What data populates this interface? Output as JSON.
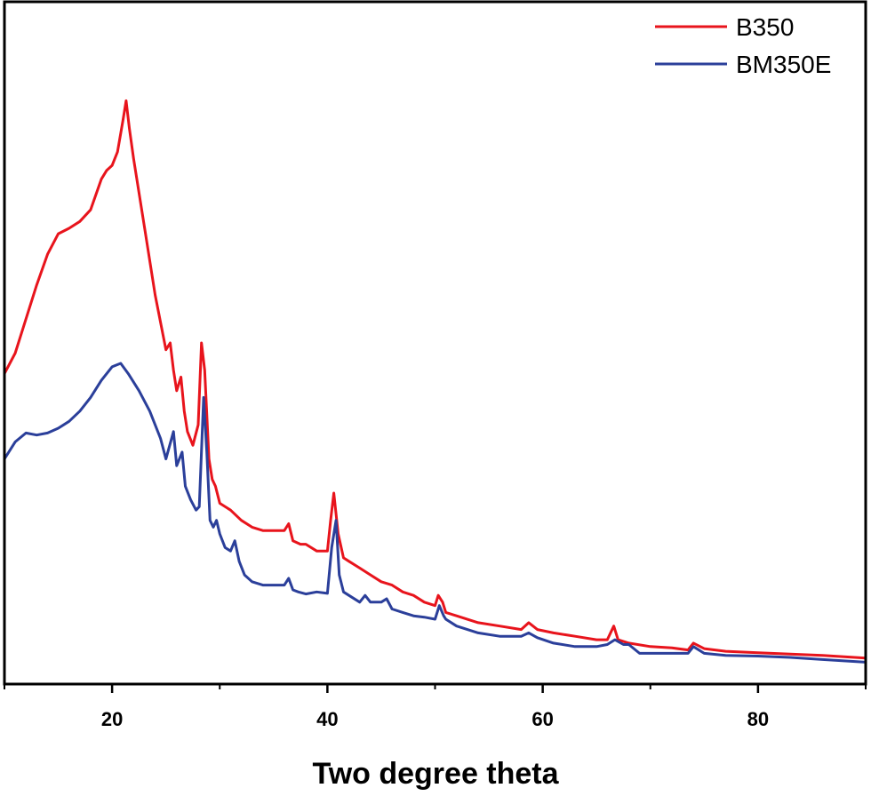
{
  "chart_data": {
    "type": "line",
    "title": "",
    "xlabel": "Two degree theta",
    "ylabel": "",
    "xlim": [
      10,
      90
    ],
    "ylim": [
      0,
      100
    ],
    "xticks": [
      20,
      40,
      60,
      80
    ],
    "xtick_labels": [
      "20",
      "40",
      "60",
      "80"
    ],
    "x_minor_ticks": [
      10,
      30,
      50,
      70,
      90
    ],
    "y_axis_shown": false,
    "grid": false,
    "legend_position": "top-right",
    "series": [
      {
        "name": "B350",
        "color": "#e8141c",
        "x": [
          10,
          11,
          12,
          13,
          14,
          15,
          16,
          17,
          18,
          19,
          19.5,
          20,
          20.5,
          21,
          21.3,
          21.6,
          22,
          23,
          24,
          25,
          25.4,
          25.7,
          26,
          26.4,
          26.7,
          27,
          27.5,
          28,
          28.3,
          28.6,
          29,
          29.3,
          29.6,
          30,
          31,
          32,
          33,
          34,
          35,
          36,
          36.4,
          36.8,
          37.5,
          38,
          39,
          40,
          40.3,
          40.6,
          41,
          41.5,
          42,
          43,
          44,
          45,
          46,
          47,
          48,
          49,
          50,
          50.3,
          50.7,
          51,
          52,
          54,
          56,
          58,
          58.7,
          59.5,
          61,
          63,
          65,
          66,
          66.6,
          67,
          68,
          70,
          72,
          73.5,
          74,
          75,
          77,
          80,
          83,
          86,
          90
        ],
        "y": [
          45.5,
          48.5,
          53.5,
          58.5,
          63,
          66,
          66.8,
          67.8,
          69.5,
          74,
          75.3,
          76,
          78,
          82.5,
          85.5,
          81.5,
          77,
          67,
          57,
          49,
          50,
          46,
          43,
          45,
          40,
          37,
          35,
          38,
          50,
          46,
          33,
          30,
          29,
          26.5,
          25.5,
          24,
          23,
          22.5,
          22.5,
          22.5,
          23.5,
          21,
          20.5,
          20.5,
          19.5,
          19.5,
          24,
          28,
          22,
          18.5,
          18,
          17,
          16,
          15,
          14.5,
          13.5,
          13,
          12,
          11.5,
          13,
          12,
          10.5,
          10,
          9,
          8.5,
          8,
          9,
          8,
          7.5,
          7,
          6.5,
          6.5,
          8.5,
          6.5,
          6,
          5.5,
          5.3,
          5,
          6,
          5.2,
          4.8,
          4.6,
          4.4,
          4.2,
          3.8
        ]
      },
      {
        "name": "BM350E",
        "color": "#2b3f9a",
        "x": [
          10,
          11,
          12,
          13,
          14,
          15,
          16,
          17,
          18,
          19,
          20,
          20.8,
          21.5,
          22.5,
          23.5,
          24.5,
          25,
          25.7,
          26,
          26.5,
          26.8,
          27.3,
          27.8,
          28.1,
          28.5,
          28.8,
          29.1,
          29.4,
          29.7,
          30,
          30.5,
          31,
          31.4,
          31.8,
          32.3,
          33,
          34,
          35,
          36,
          36.4,
          36.8,
          37.3,
          38,
          39,
          40,
          40.4,
          40.8,
          41.1,
          41.5,
          42,
          43,
          43.5,
          44,
          45,
          45.5,
          46,
          47,
          48,
          49,
          50,
          50.4,
          50.8,
          51,
          52,
          54,
          56,
          58,
          58.7,
          59.5,
          61,
          63,
          65,
          66,
          66.7,
          67.5,
          68,
          69,
          70,
          72,
          73.5,
          74,
          75,
          77,
          80,
          83,
          86,
          90
        ],
        "y": [
          33,
          35.5,
          36.8,
          36.5,
          36.8,
          37.5,
          38.5,
          40,
          42,
          44.5,
          46.5,
          47,
          45.5,
          43,
          40,
          36,
          33,
          37,
          32,
          34,
          29,
          27,
          25.5,
          26,
          42,
          34,
          24,
          23,
          24,
          22,
          20,
          19.5,
          21,
          18,
          16,
          15,
          14.5,
          14.5,
          14.5,
          15.5,
          13.8,
          13.5,
          13.2,
          13.5,
          13.3,
          20,
          24,
          16,
          13.5,
          13,
          12,
          13,
          12,
          12,
          12.5,
          11,
          10.5,
          10,
          9.8,
          9.5,
          11.5,
          10,
          9.5,
          8.5,
          7.5,
          7,
          7,
          7.5,
          6.8,
          6,
          5.5,
          5.5,
          5.8,
          6.5,
          5.8,
          5.8,
          4.5,
          4.5,
          4.5,
          4.5,
          5.5,
          4.5,
          4.2,
          4.1,
          3.9,
          3.6,
          3.2
        ]
      }
    ]
  }
}
